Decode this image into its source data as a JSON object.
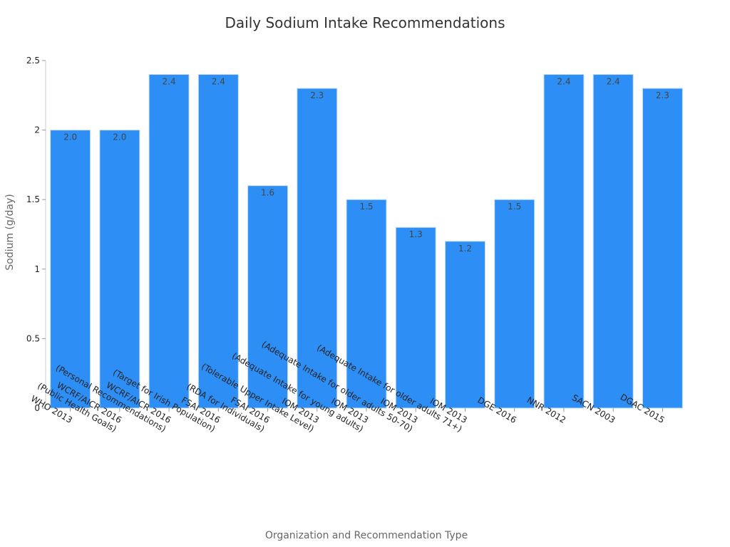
{
  "chart_data": {
    "type": "bar",
    "title": "Daily Sodium Intake Recommendations",
    "xlabel": "Organization and Recommendation Type",
    "ylabel": "Sodium (g/day)",
    "ylim": [
      0,
      2.5
    ],
    "yticks": [
      0,
      0.5,
      1,
      1.5,
      2,
      2.5
    ],
    "ytick_labels": [
      "0",
      "0.5",
      "1",
      "1.5",
      "2",
      "2.5"
    ],
    "grid": false,
    "bar_color": "#2d8ff5",
    "categories": [
      [
        "WHO 2013"
      ],
      [
        "WCRF/AICR 2016",
        "(Public Health Goals)"
      ],
      [
        "WCRF/AICR 2016",
        "(Personal Recommendations)"
      ],
      [
        "FSAI 2016",
        "(Target for Irish Population)"
      ],
      [
        "FSAI 2016",
        "(RDA for Individuals)"
      ],
      [
        "IOM 2013",
        "(Tolerable Upper Intake Level)"
      ],
      [
        "IOM 2013",
        "(Adequate Intake for young adults)"
      ],
      [
        "IOM 2013",
        "(Adequate Intake for older adults 50-70)"
      ],
      [
        "IOM 2013",
        "(Adequate Intake for older adults 71+)"
      ],
      [
        "DGE 2016"
      ],
      [
        "NNR 2012"
      ],
      [
        "SACN 2003"
      ],
      [
        "DGAC 2015"
      ]
    ],
    "values": [
      2.0,
      2.0,
      2.4,
      2.4,
      1.6,
      2.3,
      1.5,
      1.3,
      1.2,
      1.5,
      2.4,
      2.4,
      2.3
    ],
    "data_labels": [
      "2.0",
      "2.0",
      "2.4",
      "2.4",
      "1.6",
      "2.3",
      "1.5",
      "1.3",
      "1.2",
      "1.5",
      "2.4",
      "2.4",
      "2.3"
    ]
  }
}
